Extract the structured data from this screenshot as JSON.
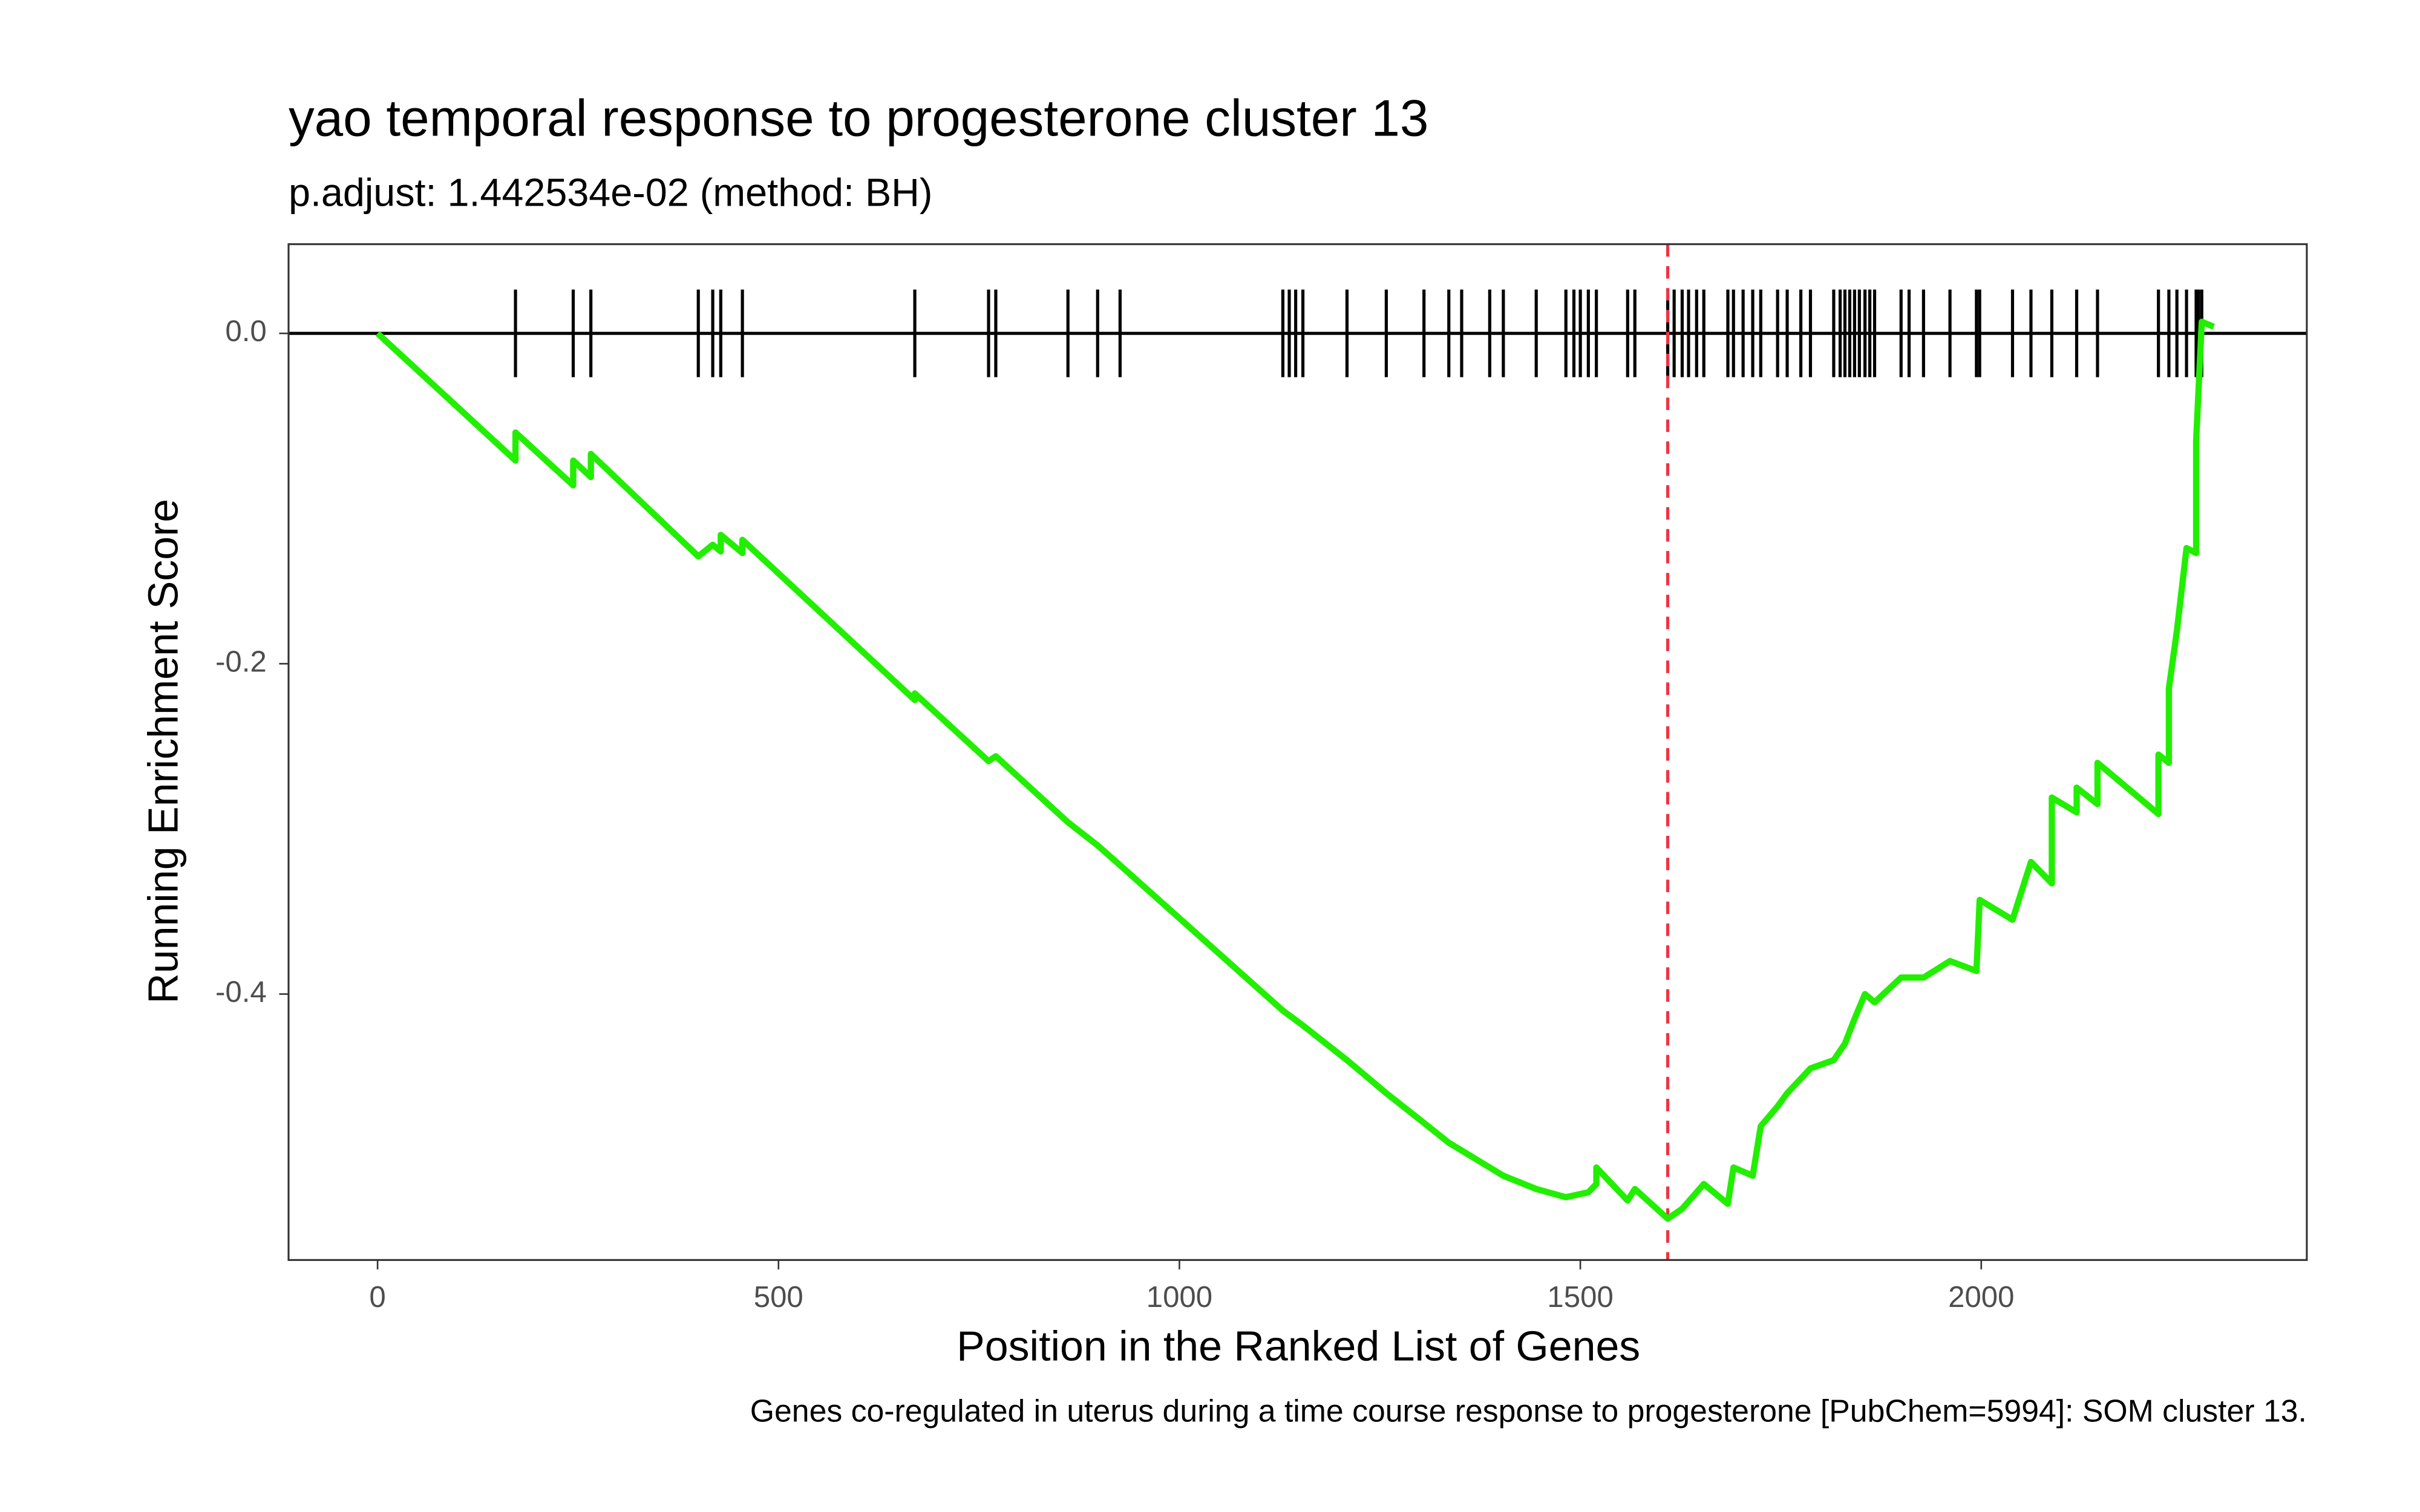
{
  "chart_data": {
    "type": "line",
    "title": "yao temporal response to progesterone cluster 13",
    "subtitle": "p.adjust: 1.442534e-02 (method: BH)",
    "x_label": "Position in the Ranked List of Genes",
    "y_label": "Running Enrichment Score",
    "caption": "Genes co-regulated in uterus during a time course response to progesterone [PubChem=5994]: SOM cluster 13.",
    "xlim": [
      -111,
      2406
    ],
    "ylim": [
      -0.561,
      0.054
    ],
    "xticks": [
      0,
      500,
      1000,
      1500,
      2000
    ],
    "yticks": [
      {
        "value": 0,
        "label": "0.0"
      },
      -0.2,
      -0.4
    ],
    "color": "#22ee00",
    "x": [
      0,
      172,
      172,
      244,
      244,
      266,
      266,
      400,
      418,
      428,
      428,
      455,
      455,
      670,
      670,
      762,
      771,
      861,
      898,
      926,
      1129,
      1154,
      1209,
      1258,
      1305,
      1336,
      1387,
      1404,
      1445,
      1482,
      1510,
      1520,
      1520,
      1559,
      1568,
      1609,
      1627,
      1645,
      1654,
      1684,
      1691,
      1715,
      1725,
      1746,
      1758,
      1787,
      1816,
      1830,
      1842,
      1855,
      1867,
      1900,
      1928,
      1961,
      1994,
      1998,
      2039,
      2062,
      2088,
      2088,
      2119,
      2119,
      2145,
      2145,
      2221,
      2221,
      2234,
      2234,
      2244,
      2256,
      2268,
      2268,
      2275,
      2290
    ],
    "values": [
      0,
      -0.077,
      -0.06,
      -0.092,
      -0.077,
      -0.087,
      -0.073,
      -0.135,
      -0.128,
      -0.132,
      -0.122,
      -0.133,
      -0.125,
      -0.222,
      -0.218,
      -0.259,
      -0.256,
      -0.296,
      -0.31,
      -0.322,
      -0.41,
      -0.419,
      -0.44,
      -0.46,
      -0.478,
      -0.49,
      -0.505,
      -0.51,
      -0.518,
      -0.523,
      -0.52,
      -0.515,
      -0.505,
      -0.525,
      -0.518,
      -0.536,
      -0.53,
      -0.52,
      -0.515,
      -0.527,
      -0.505,
      -0.51,
      -0.48,
      -0.468,
      -0.46,
      -0.445,
      -0.44,
      -0.43,
      -0.415,
      -0.4,
      -0.405,
      -0.39,
      -0.39,
      -0.38,
      -0.386,
      -0.343,
      -0.355,
      -0.32,
      -0.333,
      -0.281,
      -0.29,
      -0.275,
      -0.285,
      -0.26,
      -0.291,
      -0.255,
      -0.26,
      -0.215,
      -0.18,
      -0.13,
      -0.133,
      -0.065,
      0.007,
      0.004
    ],
    "hits": [
      172,
      244,
      266,
      400,
      418,
      428,
      455,
      670,
      762,
      771,
      861,
      898,
      926,
      1129,
      1137,
      1145,
      1154,
      1209,
      1258,
      1305,
      1336,
      1352,
      1387,
      1404,
      1445,
      1482,
      1492,
      1500,
      1510,
      1520,
      1559,
      1568,
      1609,
      1617,
      1627,
      1635,
      1645,
      1654,
      1684,
      1691,
      1703,
      1715,
      1725,
      1746,
      1758,
      1775,
      1787,
      1816,
      1824,
      1830,
      1836,
      1842,
      1848,
      1855,
      1861,
      1867,
      1900,
      1910,
      1928,
      1961,
      1994,
      1998,
      2039,
      2062,
      2088,
      2119,
      2145,
      2221,
      2234,
      2244,
      2256,
      2268,
      2271,
      2275
    ],
    "hit_color": "#000000",
    "es_position": 1609,
    "es_line_color": "#ee3344"
  }
}
